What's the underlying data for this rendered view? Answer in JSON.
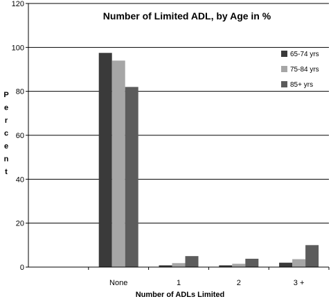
{
  "chart_data": {
    "type": "bar",
    "title": "Number of Limited ADL, by Age in %",
    "xlabel": "Number of ADLs Limited",
    "ylabel": "Percent",
    "categories": [
      "",
      "None",
      "1",
      "2",
      "3 +"
    ],
    "series": [
      {
        "name": "65-74 yrs",
        "values": [
          0,
          97.5,
          0.8,
          0.8,
          2.0
        ],
        "color": "#3a3a3a"
      },
      {
        "name": "75-84 yrs",
        "values": [
          0,
          94,
          1.8,
          1.5,
          3.6
        ],
        "color": "#a6a6a6"
      },
      {
        "name": "85+ yrs",
        "values": [
          0,
          82,
          5.0,
          3.8,
          10.0
        ],
        "color": "#5c5c5c"
      }
    ],
    "ylim": [
      0,
      120
    ],
    "yticks": [
      0,
      20,
      40,
      60,
      80,
      100,
      120
    ],
    "grid": true,
    "legend_position": "top-right"
  }
}
